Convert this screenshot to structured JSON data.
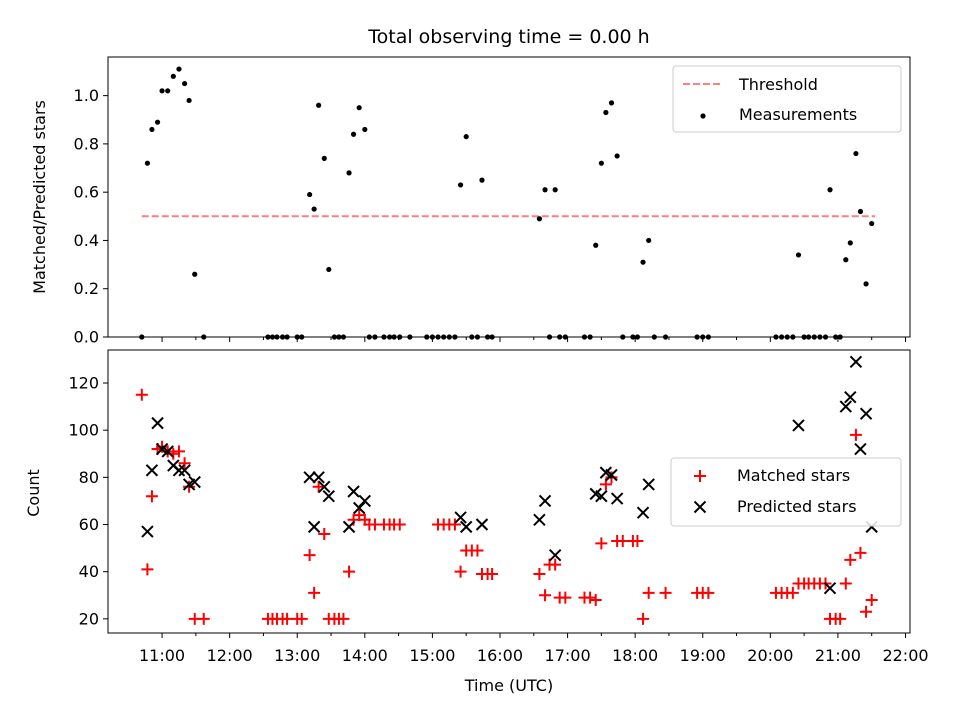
{
  "chart_data": [
    {
      "type": "scatter",
      "title": "Total observing time = 0.00 h",
      "xlabel": "",
      "ylabel": "Matched/Predicted stars",
      "xlim": [
        "10:12",
        "22:04"
      ],
      "ylim": [
        0,
        1.16
      ],
      "yticks": [
        0.0,
        0.2,
        0.4,
        0.6,
        0.8,
        1.0
      ],
      "ytick_labels": [
        "0.0",
        "0.2",
        "0.4",
        "0.6",
        "0.8",
        "1.0"
      ],
      "legend_position": "top-right",
      "threshold": {
        "name": "Threshold",
        "value": 0.5,
        "x_range": [
          "10:42",
          "21:33"
        ],
        "color": "#ff7f7f",
        "style": "dashed"
      },
      "series": [
        {
          "name": "Measurements",
          "color": "#000000",
          "marker": "dot",
          "points": [
            [
              "10:42",
              0.0
            ],
            [
              "10:47",
              0.72
            ],
            [
              "10:51",
              0.86
            ],
            [
              "10:56",
              0.89
            ],
            [
              "11:00",
              1.02
            ],
            [
              "11:05",
              1.02
            ],
            [
              "11:10",
              1.08
            ],
            [
              "11:15",
              1.11
            ],
            [
              "11:20",
              1.05
            ],
            [
              "11:24",
              0.98
            ],
            [
              "11:29",
              0.26
            ],
            [
              "11:37",
              0.0
            ],
            [
              "12:34",
              0.0
            ],
            [
              "12:38",
              0.0
            ],
            [
              "12:42",
              0.0
            ],
            [
              "12:47",
              0.0
            ],
            [
              "12:51",
              0.0
            ],
            [
              "13:00",
              0.0
            ],
            [
              "13:04",
              0.0
            ],
            [
              "13:11",
              0.59
            ],
            [
              "13:15",
              0.53
            ],
            [
              "13:19",
              0.96
            ],
            [
              "13:24",
              0.74
            ],
            [
              "13:28",
              0.28
            ],
            [
              "13:33",
              0.0
            ],
            [
              "13:37",
              0.0
            ],
            [
              "13:41",
              0.0
            ],
            [
              "13:46",
              0.68
            ],
            [
              "13:50",
              0.84
            ],
            [
              "13:55",
              0.95
            ],
            [
              "14:00",
              0.86
            ],
            [
              "14:04",
              0.0
            ],
            [
              "14:09",
              0.0
            ],
            [
              "14:17",
              0.0
            ],
            [
              "14:22",
              0.0
            ],
            [
              "14:26",
              0.0
            ],
            [
              "14:31",
              0.0
            ],
            [
              "14:40",
              0.0
            ],
            [
              "14:55",
              0.0
            ],
            [
              "15:00",
              0.0
            ],
            [
              "15:05",
              0.0
            ],
            [
              "15:10",
              0.0
            ],
            [
              "15:15",
              0.0
            ],
            [
              "15:20",
              0.0
            ],
            [
              "15:25",
              0.63
            ],
            [
              "15:30",
              0.83
            ],
            [
              "15:35",
              0.0
            ],
            [
              "15:40",
              0.0
            ],
            [
              "15:44",
              0.65
            ],
            [
              "15:49",
              0.0
            ],
            [
              "15:53",
              0.0
            ],
            [
              "16:35",
              0.49
            ],
            [
              "16:40",
              0.61
            ],
            [
              "16:44",
              0.0
            ],
            [
              "16:49",
              0.61
            ],
            [
              "16:53",
              0.0
            ],
            [
              "16:58",
              0.0
            ],
            [
              "17:15",
              0.0
            ],
            [
              "17:20",
              0.0
            ],
            [
              "17:25",
              0.38
            ],
            [
              "17:30",
              0.72
            ],
            [
              "17:34",
              0.93
            ],
            [
              "17:39",
              0.97
            ],
            [
              "17:44",
              0.75
            ],
            [
              "17:49",
              0.0
            ],
            [
              "17:58",
              0.0
            ],
            [
              "18:02",
              0.0
            ],
            [
              "18:07",
              0.31
            ],
            [
              "18:12",
              0.4
            ],
            [
              "18:17",
              0.0
            ],
            [
              "18:27",
              0.0
            ],
            [
              "18:55",
              0.0
            ],
            [
              "19:00",
              0.0
            ],
            [
              "19:05",
              0.0
            ],
            [
              "20:05",
              0.0
            ],
            [
              "20:10",
              0.0
            ],
            [
              "20:15",
              0.0
            ],
            [
              "20:20",
              0.0
            ],
            [
              "20:25",
              0.34
            ],
            [
              "20:30",
              0.0
            ],
            [
              "20:34",
              0.0
            ],
            [
              "20:39",
              0.0
            ],
            [
              "20:44",
              0.0
            ],
            [
              "20:49",
              0.0
            ],
            [
              "20:53",
              0.61
            ],
            [
              "20:58",
              0.0
            ],
            [
              "21:02",
              0.0
            ],
            [
              "21:07",
              0.32
            ],
            [
              "21:11",
              0.39
            ],
            [
              "21:16",
              0.76
            ],
            [
              "21:20",
              0.52
            ],
            [
              "21:25",
              0.22
            ],
            [
              "21:30",
              0.47
            ]
          ]
        }
      ]
    },
    {
      "type": "scatter",
      "title": "",
      "xlabel": "Time (UTC)",
      "ylabel": "Count",
      "xlim": [
        "10:12",
        "22:04"
      ],
      "ylim": [
        14,
        134
      ],
      "yticks": [
        20,
        40,
        60,
        80,
        100,
        120
      ],
      "ytick_labels": [
        "20",
        "40",
        "60",
        "80",
        "100",
        "120"
      ],
      "xticks": [
        "11:00",
        "12:00",
        "13:00",
        "14:00",
        "15:00",
        "16:00",
        "17:00",
        "18:00",
        "19:00",
        "20:00",
        "21:00",
        "22:00"
      ],
      "xtick_labels": [
        "11:00",
        "12:00",
        "13:00",
        "14:00",
        "15:00",
        "16:00",
        "17:00",
        "18:00",
        "19:00",
        "20:00",
        "21:00",
        "22:00"
      ],
      "legend_position": "center-right",
      "series": [
        {
          "name": "Matched stars",
          "color": "#ff0000",
          "marker": "plus",
          "points": [
            [
              "10:42",
              115
            ],
            [
              "10:47",
              41
            ],
            [
              "10:51",
              72
            ],
            [
              "10:56",
              92
            ],
            [
              "11:00",
              93
            ],
            [
              "11:05",
              91
            ],
            [
              "11:10",
              90
            ],
            [
              "11:15",
              91
            ],
            [
              "11:20",
              86
            ],
            [
              "11:24",
              76
            ],
            [
              "11:29",
              20
            ],
            [
              "11:37",
              20
            ],
            [
              "12:34",
              20
            ],
            [
              "12:38",
              20
            ],
            [
              "12:42",
              20
            ],
            [
              "12:47",
              20
            ],
            [
              "12:51",
              20
            ],
            [
              "13:00",
              20
            ],
            [
              "13:04",
              20
            ],
            [
              "13:11",
              47
            ],
            [
              "13:15",
              31
            ],
            [
              "13:19",
              76
            ],
            [
              "13:24",
              56
            ],
            [
              "13:28",
              20
            ],
            [
              "13:33",
              20
            ],
            [
              "13:37",
              20
            ],
            [
              "13:41",
              20
            ],
            [
              "13:46",
              40
            ],
            [
              "13:50",
              62
            ],
            [
              "13:55",
              64
            ],
            [
              "14:00",
              62
            ],
            [
              "14:04",
              60
            ],
            [
              "14:09",
              60
            ],
            [
              "14:17",
              60
            ],
            [
              "14:22",
              60
            ],
            [
              "14:26",
              60
            ],
            [
              "14:31",
              60
            ],
            [
              "15:05",
              60
            ],
            [
              "15:10",
              60
            ],
            [
              "15:15",
              60
            ],
            [
              "15:20",
              60
            ],
            [
              "15:25",
              40
            ],
            [
              "15:30",
              49
            ],
            [
              "15:35",
              49
            ],
            [
              "15:40",
              49
            ],
            [
              "15:44",
              39
            ],
            [
              "15:49",
              39
            ],
            [
              "15:53",
              39
            ],
            [
              "16:35",
              39
            ],
            [
              "16:40",
              30
            ],
            [
              "16:44",
              43
            ],
            [
              "16:49",
              43
            ],
            [
              "16:53",
              29
            ],
            [
              "16:58",
              29
            ],
            [
              "17:15",
              29
            ],
            [
              "17:20",
              29
            ],
            [
              "17:25",
              28
            ],
            [
              "17:30",
              52
            ],
            [
              "17:34",
              77
            ],
            [
              "17:39",
              80
            ],
            [
              "17:44",
              53
            ],
            [
              "17:49",
              53
            ],
            [
              "17:58",
              53
            ],
            [
              "18:02",
              53
            ],
            [
              "18:07",
              20
            ],
            [
              "18:12",
              31
            ],
            [
              "18:27",
              31
            ],
            [
              "18:55",
              31
            ],
            [
              "19:00",
              31
            ],
            [
              "19:05",
              31
            ],
            [
              "20:05",
              31
            ],
            [
              "20:10",
              31
            ],
            [
              "20:15",
              31
            ],
            [
              "20:20",
              31
            ],
            [
              "20:25",
              35
            ],
            [
              "20:30",
              35
            ],
            [
              "20:34",
              35
            ],
            [
              "20:39",
              35
            ],
            [
              "20:44",
              35
            ],
            [
              "20:49",
              35
            ],
            [
              "20:53",
              20
            ],
            [
              "20:58",
              20
            ],
            [
              "21:02",
              20
            ],
            [
              "21:07",
              35
            ],
            [
              "21:11",
              45
            ],
            [
              "21:16",
              98
            ],
            [
              "21:20",
              48
            ],
            [
              "21:25",
              23
            ],
            [
              "21:30",
              28
            ]
          ]
        },
        {
          "name": "Predicted stars",
          "color": "#000000",
          "marker": "x",
          "points": [
            [
              "10:47",
              57
            ],
            [
              "10:51",
              83
            ],
            [
              "10:56",
              103
            ],
            [
              "11:00",
              92
            ],
            [
              "11:05",
              91
            ],
            [
              "11:10",
              85
            ],
            [
              "11:15",
              83
            ],
            [
              "11:20",
              83
            ],
            [
              "11:24",
              77
            ],
            [
              "11:29",
              78
            ],
            [
              "13:11",
              80
            ],
            [
              "13:15",
              59
            ],
            [
              "13:19",
              80
            ],
            [
              "13:24",
              76
            ],
            [
              "13:28",
              72
            ],
            [
              "13:46",
              59
            ],
            [
              "13:50",
              74
            ],
            [
              "13:55",
              67
            ],
            [
              "14:00",
              70
            ],
            [
              "15:25",
              63
            ],
            [
              "15:30",
              59
            ],
            [
              "15:44",
              60
            ],
            [
              "16:35",
              62
            ],
            [
              "16:40",
              70
            ],
            [
              "16:49",
              47
            ],
            [
              "17:25",
              73
            ],
            [
              "17:30",
              72
            ],
            [
              "17:34",
              82
            ],
            [
              "17:39",
              81
            ],
            [
              "17:44",
              71
            ],
            [
              "18:07",
              65
            ],
            [
              "18:12",
              77
            ],
            [
              "20:25",
              102
            ],
            [
              "20:53",
              33
            ],
            [
              "21:07",
              110
            ],
            [
              "21:11",
              114
            ],
            [
              "21:16",
              129
            ],
            [
              "21:20",
              92
            ],
            [
              "21:25",
              107
            ],
            [
              "21:30",
              59
            ]
          ]
        }
      ]
    }
  ]
}
